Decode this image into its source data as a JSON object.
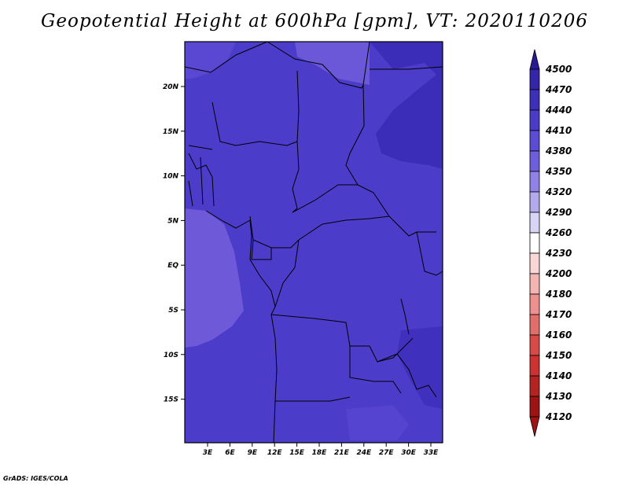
{
  "title": "Geopotential Height at 600hPa [gpm], VT: 2020110206",
  "credit": "GrADS: IGES/COLA",
  "map": {
    "lat_ticks": [
      "20N",
      "15N",
      "10N",
      "5N",
      "EQ",
      "5S",
      "10S",
      "15S"
    ],
    "lon_ticks": [
      "3E",
      "6E",
      "9E",
      "12E",
      "15E",
      "18E",
      "21E",
      "24E",
      "27E",
      "30E",
      "33E"
    ],
    "fill_colors": {
      "ocean_west": "#6e5ad8",
      "main": "#4b3cc9",
      "northeast_high": "#3b2db8",
      "north_lighter": "#6a58d8"
    }
  },
  "colorbar": {
    "labels": [
      "4500",
      "4470",
      "4440",
      "4410",
      "4380",
      "4350",
      "4320",
      "4290",
      "4260",
      "4230",
      "4200",
      "4180",
      "4170",
      "4160",
      "4150",
      "4140",
      "4130",
      "4120"
    ],
    "colors": [
      "#2a1b94",
      "#3426a8",
      "#3c2fb8",
      "#4a3cc8",
      "#5b4cd4",
      "#6d5ede",
      "#8f81e6",
      "#b3aaee",
      "#d8d4f6",
      "#ffffff",
      "#fad7d7",
      "#f4b4b2",
      "#ec9190",
      "#e26e6c",
      "#d84a48",
      "#cc3232",
      "#b52222",
      "#9e1414"
    ]
  }
}
